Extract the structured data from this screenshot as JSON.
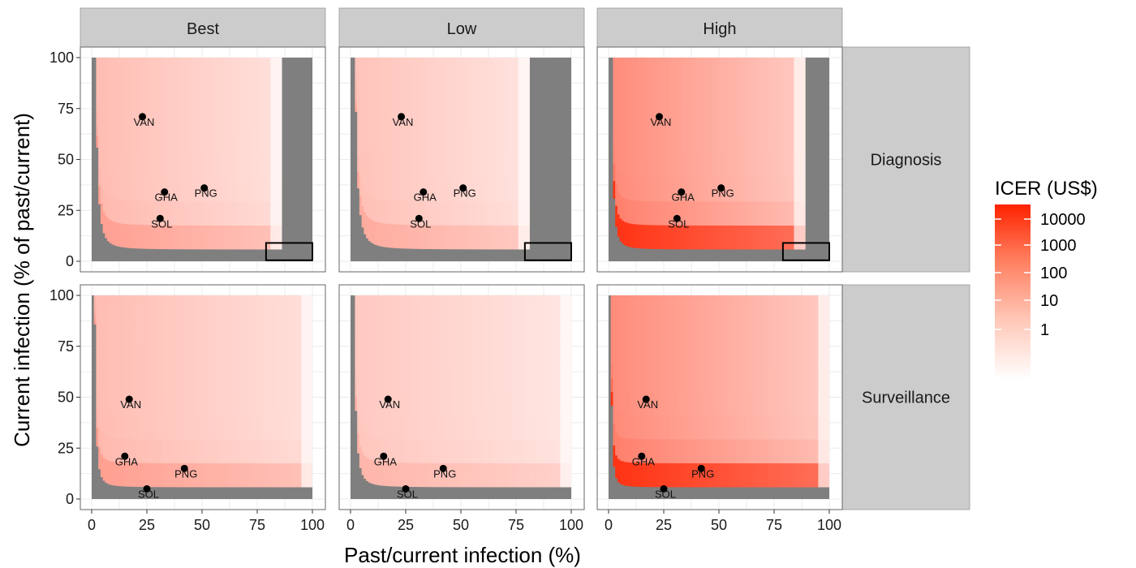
{
  "chart_data": {
    "type": "heatmap",
    "xlabel": "Past/current infection (%)",
    "ylabel": "Current infection (% of past/current)",
    "xlim": [
      0,
      100
    ],
    "ylim": [
      0,
      100
    ],
    "x_ticks": [
      "0",
      "25",
      "50",
      "75",
      "100"
    ],
    "y_ticks": [
      "0",
      "25",
      "50",
      "75",
      "100"
    ],
    "column_facets": [
      "Best",
      "Low",
      "High"
    ],
    "row_facets": [
      "Diagnosis",
      "Surveillance"
    ],
    "legend": {
      "title": "ICER (US$)",
      "labels": [
        "10000",
        "1000",
        "100",
        "10",
        "1"
      ],
      "scale": "log",
      "low_color": "#ffffff",
      "high_color": "#ff2200",
      "placement": "right"
    },
    "colors": {
      "not_cost_effective": "#7f7f7f",
      "panel_border": "#666666",
      "strip": "#cccccc",
      "point": "#000000"
    },
    "panels": [
      {
        "row": "Diagnosis",
        "col": "Best",
        "intensity": 0.55,
        "boundary_k": 200,
        "x_max": 86,
        "highlight_box": true,
        "points": [
          {
            "label": "VAN",
            "x": 23,
            "y": 71
          },
          {
            "label": "GHA",
            "x": 33,
            "y": 34
          },
          {
            "label": "PNG",
            "x": 51,
            "y": 36
          },
          {
            "label": "SOL",
            "x": 31,
            "y": 21
          }
        ]
      },
      {
        "row": "Diagnosis",
        "col": "Low",
        "intensity": 0.5,
        "boundary_k": 270,
        "x_max": 81,
        "highlight_box": true,
        "points": [
          {
            "label": "VAN",
            "x": 23,
            "y": 71
          },
          {
            "label": "GHA",
            "x": 33,
            "y": 34
          },
          {
            "label": "PNG",
            "x": 51,
            "y": 36
          },
          {
            "label": "SOL",
            "x": 31,
            "y": 21
          }
        ]
      },
      {
        "row": "Diagnosis",
        "col": "High",
        "intensity": 0.95,
        "boundary_k": 100,
        "x_max": 89,
        "highlight_box": true,
        "points": [
          {
            "label": "VAN",
            "x": 23,
            "y": 71
          },
          {
            "label": "GHA",
            "x": 33,
            "y": 34
          },
          {
            "label": "PNG",
            "x": 51,
            "y": 36
          },
          {
            "label": "SOL",
            "x": 31,
            "y": 21
          }
        ]
      },
      {
        "row": "Surveillance",
        "col": "Best",
        "intensity": 0.55,
        "boundary_k": 80,
        "x_max": 100,
        "highlight_box": false,
        "points": [
          {
            "label": "VAN",
            "x": 17,
            "y": 49
          },
          {
            "label": "GHA",
            "x": 15,
            "y": 21
          },
          {
            "label": "PNG",
            "x": 42,
            "y": 15
          },
          {
            "label": "SOL",
            "x": 25,
            "y": 5
          }
        ]
      },
      {
        "row": "Surveillance",
        "col": "Low",
        "intensity": 0.45,
        "boundary_k": 150,
        "x_max": 100,
        "highlight_box": false,
        "points": [
          {
            "label": "VAN",
            "x": 17,
            "y": 49
          },
          {
            "label": "GHA",
            "x": 15,
            "y": 21
          },
          {
            "label": "PNG",
            "x": 42,
            "y": 15
          },
          {
            "label": "SOL",
            "x": 25,
            "y": 5
          }
        ]
      },
      {
        "row": "Surveillance",
        "col": "High",
        "intensity": 0.95,
        "boundary_k": 40,
        "x_max": 100,
        "highlight_box": false,
        "points": [
          {
            "label": "VAN",
            "x": 17,
            "y": 49
          },
          {
            "label": "GHA",
            "x": 15,
            "y": 21
          },
          {
            "label": "PNG",
            "x": 42,
            "y": 15
          },
          {
            "label": "SOL",
            "x": 25,
            "y": 5
          }
        ]
      }
    ]
  }
}
